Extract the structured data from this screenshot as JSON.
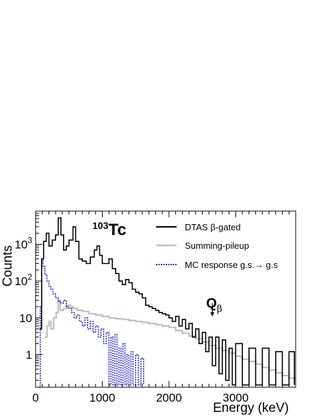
{
  "chart_data": {
    "type": "line",
    "isotope_mass": "103",
    "isotope_symbol": "Tc",
    "xlabel": "Energy (keV)",
    "ylabel": "Counts",
    "xlim": [
      0,
      3900
    ],
    "ylim": [
      0.13,
      8000
    ],
    "log_y": true,
    "x_ticks": [
      0,
      1000,
      2000,
      3000
    ],
    "x_tick_labels": [
      "0",
      "1000",
      "2000",
      "3000"
    ],
    "y_ticks": [
      1,
      10,
      100,
      1000
    ],
    "y_tick_labels": [
      {
        "base": "1",
        "exp": ""
      },
      {
        "base": "10",
        "exp": ""
      },
      {
        "base": "10",
        "exp": "2"
      },
      {
        "base": "10",
        "exp": "3"
      }
    ],
    "legend_position": "top-right",
    "q_annotation": {
      "letter": "Q",
      "subscript": "β",
      "x": 2650,
      "arrow_from": 25,
      "arrow_to": 11
    },
    "series": [
      {
        "name": "DTAS β-gated",
        "color": "#000000",
        "style": "solid",
        "points": [
          [
            60,
            5
          ],
          [
            90,
            400
          ],
          [
            120,
            1200
          ],
          [
            160,
            2000
          ],
          [
            200,
            900
          ],
          [
            250,
            1300
          ],
          [
            300,
            1800
          ],
          [
            340,
            5200
          ],
          [
            380,
            1800
          ],
          [
            420,
            700
          ],
          [
            460,
            900
          ],
          [
            500,
            1300
          ],
          [
            560,
            3000
          ],
          [
            600,
            1200
          ],
          [
            650,
            400
          ],
          [
            700,
            350
          ],
          [
            760,
            300
          ],
          [
            820,
            450
          ],
          [
            880,
            700
          ],
          [
            920,
            900
          ],
          [
            960,
            500
          ],
          [
            1000,
            300
          ],
          [
            1050,
            300
          ],
          [
            1100,
            400
          ],
          [
            1150,
            220
          ],
          [
            1200,
            160
          ],
          [
            1250,
            100
          ],
          [
            1300,
            80
          ],
          [
            1350,
            110
          ],
          [
            1400,
            90
          ],
          [
            1450,
            60
          ],
          [
            1500,
            50
          ],
          [
            1550,
            45
          ],
          [
            1600,
            35
          ],
          [
            1650,
            22
          ],
          [
            1700,
            20
          ],
          [
            1750,
            18
          ],
          [
            1800,
            16
          ],
          [
            1850,
            14
          ],
          [
            1900,
            13
          ],
          [
            1950,
            12
          ],
          [
            2000,
            10
          ],
          [
            2050,
            8
          ],
          [
            2100,
            11
          ],
          [
            2150,
            6
          ],
          [
            2200,
            9
          ],
          [
            2250,
            5
          ],
          [
            2300,
            7
          ],
          [
            2350,
            3
          ],
          [
            2400,
            5
          ],
          [
            2450,
            2
          ],
          [
            2500,
            4
          ],
          [
            2550,
            1.2
          ],
          [
            2600,
            3
          ],
          [
            2650,
            0.5
          ],
          [
            2700,
            3
          ],
          [
            2750,
            0.3
          ],
          [
            2800,
            2.5
          ],
          [
            2850,
            0.2
          ],
          [
            2900,
            1.5
          ],
          [
            2950,
            0.15
          ],
          [
            3000,
            2
          ],
          [
            3100,
            0.15
          ],
          [
            3200,
            1.5
          ],
          [
            3300,
            0.15
          ],
          [
            3400,
            1.5
          ],
          [
            3500,
            0.15
          ],
          [
            3600,
            1.2
          ],
          [
            3700,
            0.15
          ],
          [
            3800,
            1.2
          ],
          [
            3880,
            0.15
          ]
        ]
      },
      {
        "name": "Summing-pileup",
        "color": "#c4bcb4",
        "style": "solid",
        "points": [
          [
            140,
            3
          ],
          [
            170,
            6
          ],
          [
            200,
            8
          ],
          [
            230,
            5
          ],
          [
            270,
            10
          ],
          [
            310,
            14
          ],
          [
            340,
            30
          ],
          [
            370,
            16
          ],
          [
            420,
            18
          ],
          [
            470,
            22
          ],
          [
            520,
            20
          ],
          [
            560,
            18
          ],
          [
            620,
            16
          ],
          [
            700,
            15
          ],
          [
            800,
            13
          ],
          [
            900,
            12
          ],
          [
            1000,
            11
          ],
          [
            1100,
            10
          ],
          [
            1200,
            9.5
          ],
          [
            1300,
            9
          ],
          [
            1400,
            8.5
          ],
          [
            1500,
            8
          ],
          [
            1600,
            7.5
          ],
          [
            1700,
            7
          ],
          [
            1800,
            6.5
          ],
          [
            1900,
            6
          ],
          [
            2000,
            5.5
          ],
          [
            2100,
            4.5
          ],
          [
            2200,
            3.8
          ],
          [
            2300,
            3.2
          ],
          [
            2400,
            2.7
          ],
          [
            2500,
            2.2
          ],
          [
            2600,
            1.8
          ],
          [
            2700,
            1.5
          ],
          [
            2800,
            1.3
          ],
          [
            2900,
            1.1
          ],
          [
            3000,
            0.9
          ],
          [
            3100,
            0.75
          ],
          [
            3200,
            0.65
          ],
          [
            3300,
            0.55
          ],
          [
            3400,
            0.45
          ],
          [
            3500,
            0.38
          ],
          [
            3600,
            0.32
          ],
          [
            3700,
            0.27
          ],
          [
            3800,
            0.23
          ],
          [
            3880,
            0.2
          ]
        ]
      },
      {
        "name": "MC response g.s.→ g.s",
        "color": "#1f1fe0",
        "style": "dotted",
        "points": [
          [
            50,
            0.13
          ],
          [
            70,
            20
          ],
          [
            90,
            380
          ],
          [
            110,
            250
          ],
          [
            140,
            150
          ],
          [
            170,
            100
          ],
          [
            200,
            70
          ],
          [
            230,
            60
          ],
          [
            260,
            45
          ],
          [
            300,
            35
          ],
          [
            340,
            28
          ],
          [
            380,
            25
          ],
          [
            420,
            30
          ],
          [
            460,
            20
          ],
          [
            500,
            18
          ],
          [
            540,
            14
          ],
          [
            580,
            10
          ],
          [
            620,
            12
          ],
          [
            660,
            8
          ],
          [
            700,
            6
          ],
          [
            740,
            10
          ],
          [
            780,
            5
          ],
          [
            820,
            8
          ],
          [
            860,
            4
          ],
          [
            900,
            6
          ],
          [
            940,
            3
          ],
          [
            980,
            5
          ],
          [
            1020,
            2
          ],
          [
            1060,
            4
          ],
          [
            1100,
            0.15
          ],
          [
            1130,
            3
          ],
          [
            1160,
            0.15
          ],
          [
            1190,
            3.5
          ],
          [
            1220,
            0.15
          ],
          [
            1250,
            1.5
          ],
          [
            1280,
            0.15
          ],
          [
            1310,
            2
          ],
          [
            1340,
            0.15
          ],
          [
            1370,
            1
          ],
          [
            1400,
            0.15
          ],
          [
            1430,
            1.2
          ],
          [
            1460,
            0.15
          ],
          [
            1500,
            1
          ],
          [
            1540,
            0.15
          ],
          [
            1580,
            0.8
          ],
          [
            1620,
            0.15
          ]
        ]
      }
    ]
  }
}
